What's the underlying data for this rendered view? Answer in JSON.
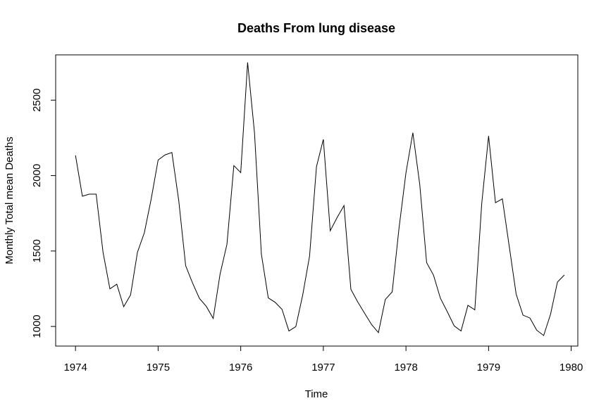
{
  "chart_data": {
    "type": "line",
    "title": "Deaths From lung disease",
    "xlabel": "Time",
    "ylabel": "Monthly Total mean Deaths",
    "xlim": [
      1973.76,
      1980.08
    ],
    "ylim": [
      870,
      2800
    ],
    "x_ticks": [
      "1974",
      "1975",
      "1976",
      "1977",
      "1978",
      "1979",
      "1980"
    ],
    "y_ticks": [
      "1000",
      "1500",
      "2000",
      "2500"
    ],
    "x_tick_values": [
      1974,
      1975,
      1976,
      1977,
      1978,
      1979,
      1980
    ],
    "y_tick_values": [
      1000,
      1500,
      2000,
      2500
    ],
    "grid": false,
    "line_color": "#000000",
    "series": [
      {
        "x_start": 1974,
        "x_step": 0.0833333,
        "values": [
          2134,
          1863,
          1877,
          1877,
          1492,
          1249,
          1280,
          1131,
          1209,
          1492,
          1621,
          1846,
          2103,
          2137,
          2153,
          1833,
          1403,
          1288,
          1186,
          1133,
          1053,
          1347,
          1545,
          2066,
          2020,
          2750,
          2283,
          1479,
          1189,
          1160,
          1113,
          970,
          999,
          1208,
          1467,
          2059,
          2240,
          1634,
          1722,
          1801,
          1246,
          1162,
          1087,
          1013,
          959,
          1179,
          1229,
          1655,
          2019,
          2284,
          1942,
          1423,
          1340,
          1187,
          1098,
          1004,
          970,
          1140,
          1110,
          1812,
          2263,
          1820,
          1846,
          1531,
          1215,
          1075,
          1056,
          975,
          940,
          1081,
          1294,
          1341
        ]
      }
    ]
  }
}
